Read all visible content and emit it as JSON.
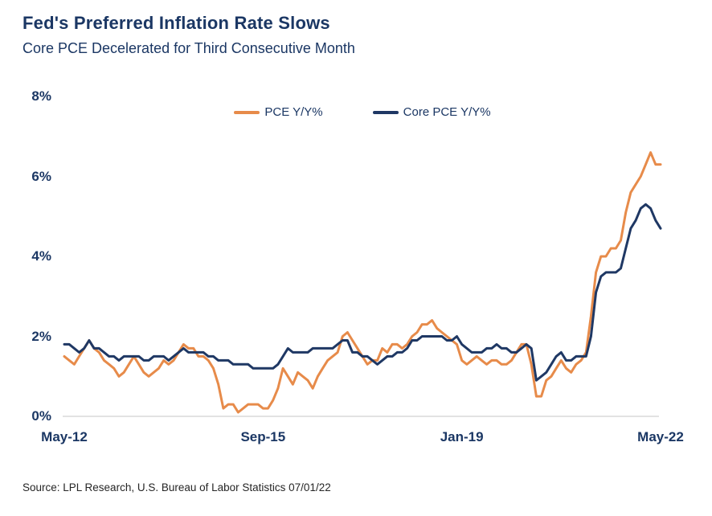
{
  "header": {
    "title": "Fed's Preferred Inflation Rate Slows",
    "subtitle": "Core PCE Decelerated for Third Consecutive Month"
  },
  "footer": {
    "source": "Source: LPL Research, U.S. Bureau of Labor Statistics 07/01/22"
  },
  "colors": {
    "navy_text": "#1B3764",
    "source_text": "#262626"
  },
  "chart_data": {
    "type": "line",
    "title": "Fed's Preferred Inflation Rate Slows",
    "subtitle": "Core PCE Decelerated for Third Consecutive Month",
    "x_start": "May-12",
    "x_end": "May-22",
    "frequency": "monthly",
    "n_points": 121,
    "x_tick_labels": [
      "May-12",
      "Sep-15",
      "Jan-19",
      "May-22"
    ],
    "x_tick_indices": [
      0,
      40,
      80,
      120
    ],
    "y_ticks": [
      0,
      2,
      4,
      6,
      8
    ],
    "y_tick_labels": [
      "0%",
      "2%",
      "4%",
      "6%",
      "8%"
    ],
    "ylim": [
      0,
      8
    ],
    "grid": false,
    "zero_baseline": true,
    "gridline_color": "#D9D9D9",
    "legend_position": "top-center",
    "series": [
      {
        "name": "PCE Y/Y%",
        "color": "#E78B4A",
        "values": [
          1.5,
          1.4,
          1.3,
          1.5,
          1.7,
          1.9,
          1.7,
          1.6,
          1.4,
          1.3,
          1.2,
          1.0,
          1.1,
          1.3,
          1.5,
          1.3,
          1.1,
          1.0,
          1.1,
          1.2,
          1.4,
          1.3,
          1.4,
          1.6,
          1.8,
          1.7,
          1.7,
          1.5,
          1.5,
          1.4,
          1.2,
          0.8,
          0.2,
          0.3,
          0.3,
          0.1,
          0.2,
          0.3,
          0.3,
          0.3,
          0.2,
          0.2,
          0.4,
          0.7,
          1.2,
          1.0,
          0.8,
          1.1,
          1.0,
          0.9,
          0.7,
          1.0,
          1.2,
          1.4,
          1.5,
          1.6,
          2.0,
          2.1,
          1.9,
          1.7,
          1.5,
          1.3,
          1.4,
          1.4,
          1.7,
          1.6,
          1.8,
          1.8,
          1.7,
          1.8,
          2.0,
          2.1,
          2.3,
          2.3,
          2.4,
          2.2,
          2.1,
          2.0,
          1.9,
          1.8,
          1.4,
          1.3,
          1.4,
          1.5,
          1.4,
          1.3,
          1.4,
          1.4,
          1.3,
          1.3,
          1.4,
          1.6,
          1.8,
          1.8,
          1.3,
          0.5,
          0.5,
          0.9,
          1.0,
          1.2,
          1.4,
          1.2,
          1.1,
          1.3,
          1.4,
          1.6,
          2.5,
          3.6,
          4.0,
          4.0,
          4.2,
          4.2,
          4.4,
          5.1,
          5.6,
          5.8,
          6.0,
          6.3,
          6.6,
          6.3,
          6.3
        ]
      },
      {
        "name": "Core PCE Y/Y%",
        "color": "#1F3864",
        "values": [
          1.8,
          1.8,
          1.7,
          1.6,
          1.7,
          1.9,
          1.7,
          1.7,
          1.6,
          1.5,
          1.5,
          1.4,
          1.5,
          1.5,
          1.5,
          1.5,
          1.4,
          1.4,
          1.5,
          1.5,
          1.5,
          1.4,
          1.5,
          1.6,
          1.7,
          1.6,
          1.6,
          1.6,
          1.6,
          1.5,
          1.5,
          1.4,
          1.4,
          1.4,
          1.3,
          1.3,
          1.3,
          1.3,
          1.2,
          1.2,
          1.2,
          1.2,
          1.2,
          1.3,
          1.5,
          1.7,
          1.6,
          1.6,
          1.6,
          1.6,
          1.7,
          1.7,
          1.7,
          1.7,
          1.7,
          1.8,
          1.9,
          1.9,
          1.6,
          1.6,
          1.5,
          1.5,
          1.4,
          1.3,
          1.4,
          1.5,
          1.5,
          1.6,
          1.6,
          1.7,
          1.9,
          1.9,
          2.0,
          2.0,
          2.0,
          2.0,
          2.0,
          1.9,
          1.9,
          2.0,
          1.8,
          1.7,
          1.6,
          1.6,
          1.6,
          1.7,
          1.7,
          1.8,
          1.7,
          1.7,
          1.6,
          1.6,
          1.7,
          1.8,
          1.7,
          0.9,
          1.0,
          1.1,
          1.3,
          1.5,
          1.6,
          1.4,
          1.4,
          1.5,
          1.5,
          1.5,
          2.0,
          3.1,
          3.5,
          3.6,
          3.6,
          3.6,
          3.7,
          4.2,
          4.7,
          4.9,
          5.2,
          5.3,
          5.2,
          4.9,
          4.7
        ]
      }
    ]
  }
}
